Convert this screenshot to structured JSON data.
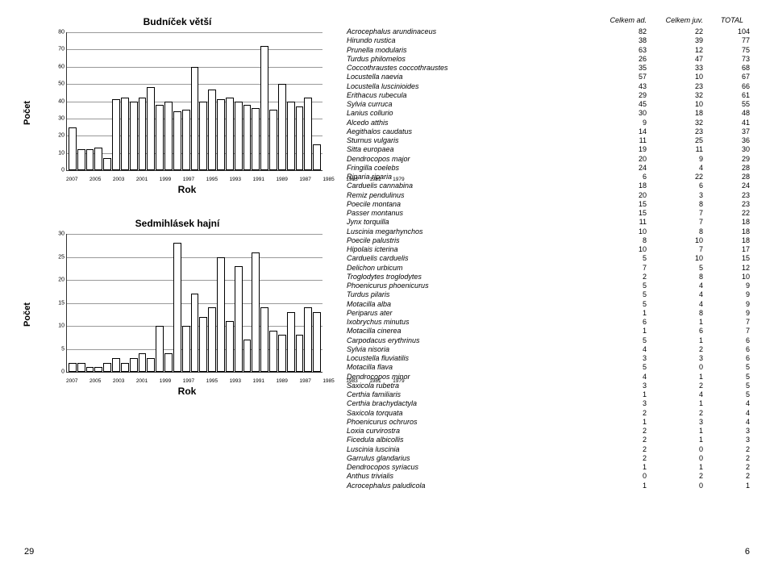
{
  "charts": [
    {
      "title": "Budníček větší",
      "ylabel": "Počet",
      "xlabel": "Rok",
      "ymax": 80,
      "ytick_step": 10,
      "categories": [
        2007,
        2006,
        2005,
        2004,
        2003,
        2002,
        2001,
        2000,
        1999,
        1998,
        1997,
        1996,
        1995,
        1994,
        1993,
        1992,
        1991,
        1990,
        1989,
        1988,
        1987,
        1986,
        1985,
        1984,
        1983,
        1982,
        1981,
        1980,
        1979
      ],
      "xlabel_every": 2,
      "values": [
        25,
        12,
        12,
        13,
        7,
        41,
        42,
        40,
        42,
        48,
        38,
        40,
        34,
        35,
        60,
        40,
        47,
        41,
        42,
        40,
        38,
        36,
        72,
        35,
        50,
        40,
        37,
        42,
        15
      ],
      "bar_fill": "#ffffff",
      "bar_border": "#000000",
      "grid_color": "#999999",
      "axis_color": "#333333",
      "title_fontsize": 12,
      "label_fontsize": 11,
      "tick_fontsize": 7,
      "background_color": "#ffffff"
    },
    {
      "title": "Sedmihlásek hajní",
      "ylabel": "Počet",
      "xlabel": "Rok",
      "ymax": 30,
      "ytick_step": 5,
      "categories": [
        2007,
        2006,
        2005,
        2004,
        2003,
        2002,
        2001,
        2000,
        1999,
        1998,
        1997,
        1996,
        1995,
        1994,
        1993,
        1992,
        1991,
        1990,
        1989,
        1988,
        1987,
        1986,
        1985,
        1984,
        1983,
        1982,
        1981,
        1980,
        1979
      ],
      "xlabel_every": 2,
      "values": [
        2,
        2,
        1,
        1,
        2,
        3,
        2,
        3,
        4,
        3,
        10,
        4,
        28,
        10,
        17,
        12,
        14,
        25,
        11,
        23,
        7,
        26,
        14,
        9,
        8,
        13,
        8,
        14,
        13
      ],
      "bar_fill": "#ffffff",
      "bar_border": "#000000",
      "grid_color": "#999999",
      "axis_color": "#333333",
      "title_fontsize": 12,
      "label_fontsize": 11,
      "tick_fontsize": 7,
      "background_color": "#ffffff"
    }
  ],
  "table": {
    "headers": {
      "ad": "Celkem ad.",
      "juv": "Celkem juv.",
      "total": "TOTAL"
    },
    "rows": [
      {
        "n": "Acrocephalus arundinaceus",
        "a": 82,
        "j": 22,
        "t": 104
      },
      {
        "n": "Hirundo rustica",
        "a": 38,
        "j": 39,
        "t": 77
      },
      {
        "n": "Prunella modularis",
        "a": 63,
        "j": 12,
        "t": 75
      },
      {
        "n": "Turdus philomelos",
        "a": 26,
        "j": 47,
        "t": 73
      },
      {
        "n": "Coccothraustes coccothraustes",
        "a": 35,
        "j": 33,
        "t": 68
      },
      {
        "n": "Locustella naevia",
        "a": 57,
        "j": 10,
        "t": 67
      },
      {
        "n": "Locustella luscinioides",
        "a": 43,
        "j": 23,
        "t": 66
      },
      {
        "n": "Erithacus rubecula",
        "a": 29,
        "j": 32,
        "t": 61
      },
      {
        "n": "Sylvia curruca",
        "a": 45,
        "j": 10,
        "t": 55
      },
      {
        "n": "Lanius collurio",
        "a": 30,
        "j": 18,
        "t": 48
      },
      {
        "n": "Alcedo atthis",
        "a": 9,
        "j": 32,
        "t": 41
      },
      {
        "n": "Aegithalos caudatus",
        "a": 14,
        "j": 23,
        "t": 37
      },
      {
        "n": "Sturnus vulgaris",
        "a": 11,
        "j": 25,
        "t": 36
      },
      {
        "n": "Sitta europaea",
        "a": 19,
        "j": 11,
        "t": 30
      },
      {
        "n": "Dendrocopos major",
        "a": 20,
        "j": 9,
        "t": 29
      },
      {
        "n": "Fringilla coelebs",
        "a": 24,
        "j": 4,
        "t": 28
      },
      {
        "n": "Riparia riparia",
        "a": 6,
        "j": 22,
        "t": 28
      },
      {
        "n": "Carduelis cannabina",
        "a": 18,
        "j": 6,
        "t": 24
      },
      {
        "n": "Remiz pendulinus",
        "a": 20,
        "j": 3,
        "t": 23
      },
      {
        "n": "Poecile montana",
        "a": 15,
        "j": 8,
        "t": 23
      },
      {
        "n": "Passer montanus",
        "a": 15,
        "j": 7,
        "t": 22
      },
      {
        "n": "Jynx torquilla",
        "a": 11,
        "j": 7,
        "t": 18
      },
      {
        "n": "Luscinia megarhynchos",
        "a": 10,
        "j": 8,
        "t": 18
      },
      {
        "n": "Poecile palustris",
        "a": 8,
        "j": 10,
        "t": 18
      },
      {
        "n": "Hipolais icterina",
        "a": 10,
        "j": 7,
        "t": 17
      },
      {
        "n": "Carduelis carduelis",
        "a": 5,
        "j": 10,
        "t": 15
      },
      {
        "n": "Delichon urbicum",
        "a": 7,
        "j": 5,
        "t": 12
      },
      {
        "n": "Troglodytes troglodytes",
        "a": 2,
        "j": 8,
        "t": 10
      },
      {
        "n": "Phoenicurus phoenicurus",
        "a": 5,
        "j": 4,
        "t": 9
      },
      {
        "n": "Turdus pilaris",
        "a": 5,
        "j": 4,
        "t": 9
      },
      {
        "n": "Motacilla alba",
        "a": 5,
        "j": 4,
        "t": 9
      },
      {
        "n": "Periparus ater",
        "a": 1,
        "j": 8,
        "t": 9
      },
      {
        "n": "Ixobrychus minutus",
        "a": 6,
        "j": 1,
        "t": 7
      },
      {
        "n": "Motacilla cinerea",
        "a": 1,
        "j": 6,
        "t": 7
      },
      {
        "n": "Carpodacus erythrinus",
        "a": 5,
        "j": 1,
        "t": 6
      },
      {
        "n": "Sylvia nisoria",
        "a": 4,
        "j": 2,
        "t": 6
      },
      {
        "n": "Locustella fluviatilis",
        "a": 3,
        "j": 3,
        "t": 6
      },
      {
        "n": "Motacilla flava",
        "a": 5,
        "j": 0,
        "t": 5
      },
      {
        "n": "Dendrocopos minor",
        "a": 4,
        "j": 1,
        "t": 5
      },
      {
        "n": "Saxicola rubetra",
        "a": 3,
        "j": 2,
        "t": 5
      },
      {
        "n": "Certhia familiaris",
        "a": 1,
        "j": 4,
        "t": 5
      },
      {
        "n": "Certhia brachydactyla",
        "a": 3,
        "j": 1,
        "t": 4
      },
      {
        "n": "Saxicola torquata",
        "a": 2,
        "j": 2,
        "t": 4
      },
      {
        "n": "Phoenicurus ochruros",
        "a": 1,
        "j": 3,
        "t": 4
      },
      {
        "n": "Loxia curvirostra",
        "a": 2,
        "j": 1,
        "t": 3
      },
      {
        "n": "Ficedula albicollis",
        "a": 2,
        "j": 1,
        "t": 3
      },
      {
        "n": "Luscinia luscinia",
        "a": 2,
        "j": 0,
        "t": 2
      },
      {
        "n": "Garrulus glandarius",
        "a": 2,
        "j": 0,
        "t": 2
      },
      {
        "n": "Dendrocopos syriacus",
        "a": 1,
        "j": 1,
        "t": 2
      },
      {
        "n": "Anthus trivialis",
        "a": 0,
        "j": 2,
        "t": 2
      },
      {
        "n": "Acrocephalus paludicola",
        "a": 1,
        "j": 0,
        "t": 1
      }
    ]
  },
  "pagenum_left": "29",
  "pagenum_right": "6"
}
